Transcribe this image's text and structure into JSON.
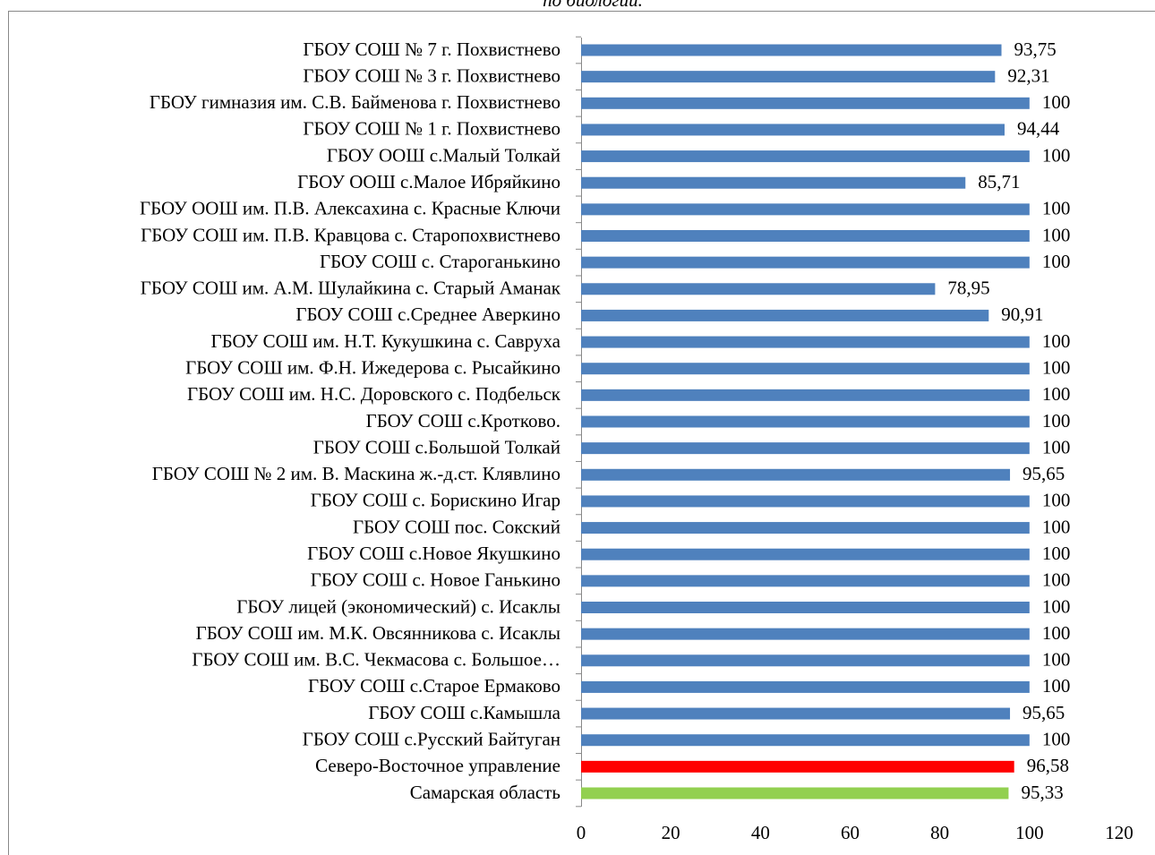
{
  "chart_data": {
    "type": "bar",
    "orientation": "horizontal",
    "title": "по биологии.",
    "categories": [
      "ГБОУ СОШ № 7 г. Похвистнево",
      "ГБОУ СОШ № 3 г. Похвистнево",
      "ГБОУ гимназия им. С.В. Байменова г. Похвистнево",
      "ГБОУ СОШ № 1 г. Похвистнево",
      "ГБОУ ООШ с.Малый Толкай",
      "ГБОУ ООШ с.Малое Ибряйкино",
      "ГБОУ ООШ им. П.В. Алексахина с. Красные Ключи",
      "ГБОУ СОШ им. П.В. Кравцова с. Старопохвистнево",
      "ГБОУ СОШ с. Староганькино",
      "ГБОУ СОШ им. А.М. Шулайкина с. Старый Аманак",
      "ГБОУ СОШ с.Среднее Аверкино",
      "ГБОУ СОШ им. Н.Т. Кукушкина с. Савруха",
      "ГБОУ СОШ им. Ф.Н. Ижедерова с. Рысайкино",
      "ГБОУ СОШ им. Н.С. Доровского с. Подбельск",
      "ГБОУ СОШ с.Кротково.",
      "ГБОУ СОШ с.Большой Толкай",
      "ГБОУ СОШ № 2 им. В. Маскина ж.-д.ст. Клявлино",
      "ГБОУ СОШ с. Борискино Игар",
      "ГБОУ СОШ пос. Сокский",
      "ГБОУ СОШ с.Новое  Якушкино",
      "ГБОУ СОШ с. Новое Ганькино",
      "ГБОУ лицей (экономический) с. Исаклы",
      "ГБОУ СОШ им. М.К. Овсянникова с. Исаклы",
      "ГБОУ СОШ им. В.С. Чекмасова с. Большое…",
      "ГБОУ СОШ с.Старое Ермаково",
      "ГБОУ СОШ с.Камышла",
      "ГБОУ СОШ с.Русский Байтуган",
      "Северо-Восточное управление",
      "Самарская область"
    ],
    "values": [
      93.75,
      92.31,
      100,
      94.44,
      100,
      85.71,
      100,
      100,
      100,
      78.95,
      90.91,
      100,
      100,
      100,
      100,
      100,
      95.65,
      100,
      100,
      100,
      100,
      100,
      100,
      100,
      100,
      95.65,
      100,
      96.58,
      95.33
    ],
    "value_labels": [
      "93,75",
      "92,31",
      "100",
      "94,44",
      "100",
      "85,71",
      "100",
      "100",
      "100",
      "78,95",
      "90,91",
      "100",
      "100",
      "100",
      "100",
      "100",
      "95,65",
      "100",
      "100",
      "100",
      "100",
      "100",
      "100",
      "100",
      "100",
      "95,65",
      "100",
      "96,58",
      "95,33"
    ],
    "colors": [
      "#4f81bd",
      "#4f81bd",
      "#4f81bd",
      "#4f81bd",
      "#4f81bd",
      "#4f81bd",
      "#4f81bd",
      "#4f81bd",
      "#4f81bd",
      "#4f81bd",
      "#4f81bd",
      "#4f81bd",
      "#4f81bd",
      "#4f81bd",
      "#4f81bd",
      "#4f81bd",
      "#4f81bd",
      "#4f81bd",
      "#4f81bd",
      "#4f81bd",
      "#4f81bd",
      "#4f81bd",
      "#4f81bd",
      "#4f81bd",
      "#4f81bd",
      "#4f81bd",
      "#4f81bd",
      "#ff0000",
      "#92d050"
    ],
    "xlim": [
      0,
      120
    ],
    "xticks": [
      0,
      20,
      40,
      60,
      80,
      100,
      120
    ],
    "grid": false
  }
}
